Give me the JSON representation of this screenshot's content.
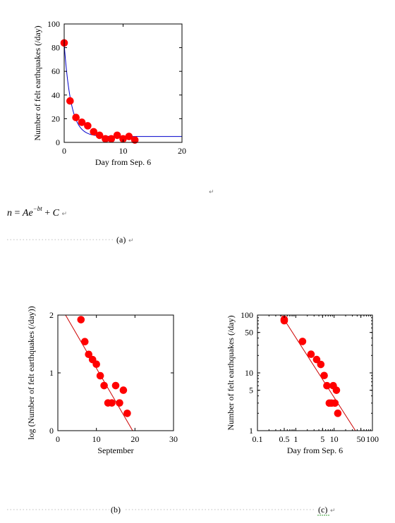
{
  "equation": {
    "lhs": "n",
    "eq": "= ",
    "A": "A",
    "e": "e",
    "exp": "−bt",
    "plus": " + ",
    "C": "C",
    "mark": "↵"
  },
  "stray_marks": {
    "top": "↵",
    "a": "↵",
    "c": "↵"
  },
  "captions": {
    "a": "(a)",
    "b": "(b)",
    "c": "(c)"
  },
  "colors": {
    "points": "#ff0000",
    "fit_a": "#0000cc",
    "fit_bc": "#cc0000",
    "axis": "#000000"
  },
  "chart_data": [
    {
      "type": "scatter",
      "xlabel": "Day from Sep. 6",
      "ylabel": "Number of felt earthquakes (/day)",
      "xlim": [
        0,
        20
      ],
      "ylim": [
        0,
        100
      ],
      "xticks": [
        0,
        10,
        20
      ],
      "yticks": [
        0,
        20,
        40,
        60,
        80,
        100
      ],
      "x": [
        0,
        1,
        2,
        3,
        4,
        5,
        6,
        7,
        8,
        9,
        10,
        11,
        12
      ],
      "y": [
        84,
        35,
        21,
        17,
        14,
        9,
        6,
        3,
        3,
        6,
        3,
        5,
        2
      ],
      "fit": {
        "model": "n = A e^(-bt) + C",
        "A": 78,
        "b": 0.85,
        "C": 5,
        "x_range": [
          0,
          20
        ]
      }
    },
    {
      "type": "scatter",
      "xlabel": "September",
      "ylabel": "log (Number of felt earthquakes (/day))",
      "xlim": [
        0,
        30
      ],
      "ylim": [
        0,
        2
      ],
      "xticks": [
        0,
        10,
        20,
        30
      ],
      "yticks": [
        0,
        1,
        2
      ],
      "x": [
        6,
        7,
        8,
        9,
        10,
        11,
        12,
        13,
        14,
        15,
        16,
        17,
        18
      ],
      "y": [
        1.92,
        1.54,
        1.32,
        1.23,
        1.15,
        0.95,
        0.78,
        0.48,
        0.48,
        0.78,
        0.48,
        0.7,
        0.3
      ],
      "fit": {
        "x0": 2,
        "y0": 2.0,
        "x1": 19.4,
        "y1": 0
      }
    },
    {
      "type": "scatter",
      "log_x": true,
      "log_y": true,
      "xlabel": "Day from Sep. 6",
      "ylabel": "Number of felt earthquakes (/day)",
      "xlim": [
        0.1,
        100
      ],
      "ylim": [
        1,
        100
      ],
      "xticks": [
        {
          "v": 0.1,
          "t": "0.1"
        },
        {
          "v": 0.5,
          "t": "0.5"
        },
        {
          "v": 1,
          "t": "1"
        },
        {
          "v": 5,
          "t": "5"
        },
        {
          "v": 10,
          "t": "10"
        },
        {
          "v": 50,
          "t": "50"
        },
        {
          "v": 100,
          "t": "100"
        }
      ],
      "yticks": [
        {
          "v": 1,
          "t": "1"
        },
        {
          "v": 5,
          "t": "5"
        },
        {
          "v": 10,
          "t": "10"
        },
        {
          "v": 50,
          "t": "50"
        },
        {
          "v": 100,
          "t": "100"
        }
      ],
      "x": [
        0.5,
        0.5,
        1.5,
        2.5,
        3.5,
        4.5,
        5.5,
        6.5,
        7.5,
        8.5,
        9.5,
        10.5,
        11.5,
        12.5
      ],
      "y": [
        84,
        80,
        35,
        21,
        17,
        14,
        9,
        6,
        3,
        3,
        6,
        3,
        5,
        2
      ],
      "fit": {
        "x0": 0.42,
        "y0": 100,
        "x1": 36,
        "y1": 1
      }
    }
  ]
}
